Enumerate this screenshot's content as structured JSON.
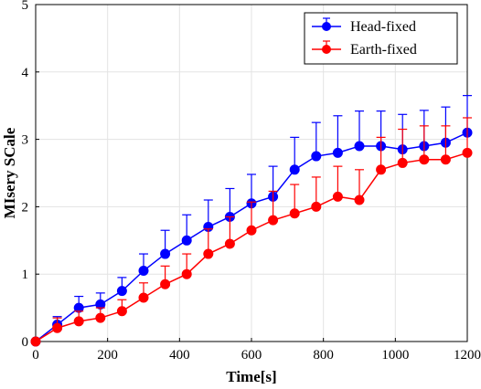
{
  "chart_data": {
    "type": "line",
    "xlabel": "Time[s]",
    "ylabel": "MIsery SCale",
    "xlim": [
      0,
      1200
    ],
    "ylim": [
      0,
      5
    ],
    "xticks": [
      0,
      200,
      400,
      600,
      800,
      1000,
      1200
    ],
    "yticks": [
      0,
      1,
      2,
      3,
      4,
      5
    ],
    "grid": true,
    "legend_position": "top-right",
    "x": [
      0,
      60,
      120,
      180,
      240,
      300,
      360,
      420,
      480,
      540,
      600,
      660,
      720,
      780,
      840,
      900,
      960,
      1020,
      1080,
      1140,
      1200
    ],
    "series": [
      {
        "name": "Head-fixed",
        "color": "#0000ff",
        "values": [
          0.0,
          0.25,
          0.5,
          0.55,
          0.75,
          1.05,
          1.3,
          1.5,
          1.7,
          1.85,
          2.05,
          2.15,
          2.55,
          2.75,
          2.8,
          2.9,
          2.9,
          2.85,
          2.9,
          2.95,
          3.1
        ],
        "error": [
          0.0,
          0.12,
          0.17,
          0.17,
          0.2,
          0.25,
          0.35,
          0.38,
          0.4,
          0.42,
          0.43,
          0.45,
          0.48,
          0.5,
          0.55,
          0.52,
          0.52,
          0.52,
          0.53,
          0.53,
          0.55
        ]
      },
      {
        "name": "Earth-fixed",
        "color": "#ff0000",
        "values": [
          0.0,
          0.2,
          0.3,
          0.35,
          0.45,
          0.65,
          0.85,
          1.0,
          1.3,
          1.45,
          1.65,
          1.8,
          1.9,
          2.0,
          2.15,
          2.1,
          2.55,
          2.65,
          2.7,
          2.7,
          2.8
        ],
        "error": [
          0.0,
          0.15,
          0.15,
          0.15,
          0.17,
          0.22,
          0.27,
          0.3,
          0.37,
          0.4,
          0.42,
          0.43,
          0.43,
          0.44,
          0.45,
          0.45,
          0.48,
          0.5,
          0.5,
          0.5,
          0.52
        ]
      }
    ]
  }
}
